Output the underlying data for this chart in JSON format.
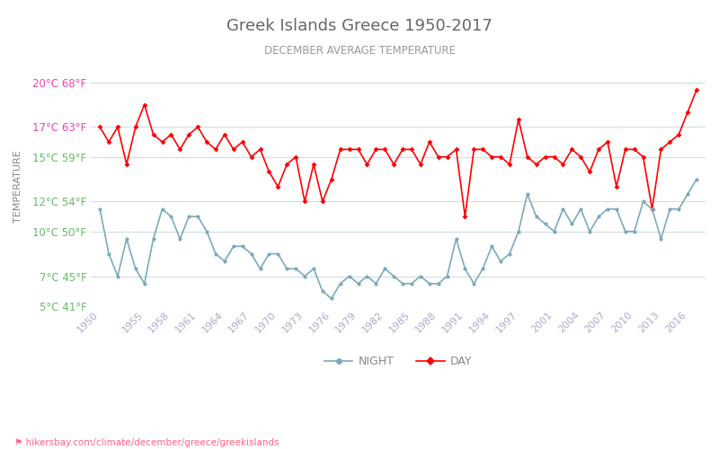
{
  "title": "Greek Islands Greece 1950-2017",
  "subtitle": "DECEMBER AVERAGE TEMPERATURE",
  "ylabel": "TEMPERATURE",
  "xlabel_url": "hikersbay.com/climate/december/greece/greekislands",
  "ylim": [
    5,
    21
  ],
  "yticks_c": [
    5,
    7,
    10,
    12,
    15,
    17,
    20
  ],
  "yticks_f": [
    41,
    45,
    50,
    54,
    59,
    63,
    68
  ],
  "years": [
    1950,
    1951,
    1952,
    1953,
    1954,
    1955,
    1956,
    1957,
    1958,
    1959,
    1960,
    1961,
    1962,
    1963,
    1964,
    1965,
    1966,
    1967,
    1968,
    1969,
    1970,
    1971,
    1972,
    1973,
    1974,
    1975,
    1976,
    1977,
    1978,
    1979,
    1980,
    1981,
    1982,
    1983,
    1984,
    1985,
    1986,
    1987,
    1988,
    1989,
    1990,
    1991,
    1992,
    1993,
    1994,
    1995,
    1996,
    1997,
    1998,
    1999,
    2000,
    2001,
    2002,
    2003,
    2004,
    2005,
    2006,
    2007,
    2008,
    2009,
    2010,
    2011,
    2012,
    2013,
    2014,
    2015,
    2016,
    2017
  ],
  "day_temps": [
    17.0,
    16.0,
    17.0,
    14.5,
    17.0,
    18.5,
    16.5,
    16.0,
    16.5,
    15.5,
    16.5,
    17.0,
    16.0,
    15.5,
    16.5,
    15.5,
    16.0,
    15.0,
    15.5,
    14.0,
    13.0,
    14.5,
    15.0,
    12.0,
    14.5,
    12.0,
    13.5,
    15.5,
    15.5,
    15.5,
    14.5,
    15.5,
    15.5,
    14.5,
    15.5,
    15.5,
    14.5,
    16.0,
    15.0,
    15.0,
    15.5,
    11.0,
    15.5,
    15.5,
    15.0,
    15.0,
    14.5,
    17.5,
    15.0,
    14.5,
    15.0,
    15.0,
    14.5,
    15.5,
    15.0,
    14.0,
    15.5,
    16.0,
    13.0,
    15.5,
    15.5,
    15.0,
    11.5,
    15.5,
    16.0,
    16.5,
    18.0,
    19.5
  ],
  "night_temps": [
    11.5,
    8.5,
    7.0,
    9.5,
    7.5,
    6.5,
    9.5,
    11.5,
    11.0,
    9.5,
    11.0,
    11.0,
    10.0,
    8.5,
    8.0,
    9.0,
    9.0,
    8.5,
    7.5,
    8.5,
    8.5,
    7.5,
    7.5,
    7.0,
    7.5,
    6.0,
    5.5,
    6.5,
    7.0,
    6.5,
    7.0,
    6.5,
    7.5,
    7.0,
    6.5,
    6.5,
    7.0,
    6.5,
    6.5,
    7.0,
    9.5,
    7.5,
    6.5,
    7.5,
    9.0,
    8.0,
    8.5,
    10.0,
    12.5,
    11.0,
    10.5,
    10.0,
    11.5,
    10.5,
    11.5,
    10.0,
    11.0,
    11.5,
    11.5,
    10.0,
    10.0,
    12.0,
    11.5,
    9.5,
    11.5,
    11.5,
    12.5,
    13.5
  ],
  "day_color": "#ff0000",
  "night_color": "#7baab8",
  "grid_color": "#d0dde8",
  "bg_color": "#ffffff",
  "title_color": "#666666",
  "subtitle_color": "#999999",
  "ylabel_color": "#888888",
  "tick_color_green": "#66bb66",
  "tick_color_pink": "#ee44aa",
  "url_color": "#ff6688",
  "xtick_years": [
    1950,
    1955,
    1958,
    1961,
    1964,
    1967,
    1970,
    1973,
    1976,
    1979,
    1982,
    1985,
    1988,
    1991,
    1994,
    1997,
    2001,
    2004,
    2007,
    2010,
    2013,
    2016
  ]
}
